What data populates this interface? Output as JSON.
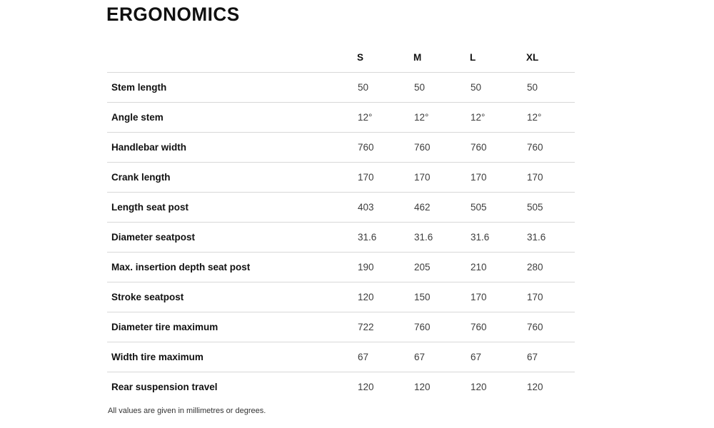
{
  "page": {
    "title": "ERGONOMICS",
    "footnote": "All values are given in millimetres or degrees."
  },
  "table": {
    "columns": [
      "S",
      "M",
      "L",
      "XL"
    ],
    "rows": [
      {
        "label": "Stem length",
        "values": [
          "50",
          "50",
          "50",
          "50"
        ]
      },
      {
        "label": "Angle stem",
        "values": [
          "12°",
          "12°",
          "12°",
          "12°"
        ]
      },
      {
        "label": "Handlebar width",
        "values": [
          "760",
          "760",
          "760",
          "760"
        ]
      },
      {
        "label": "Crank length",
        "values": [
          "170",
          "170",
          "170",
          "170"
        ]
      },
      {
        "label": "Length seat post",
        "values": [
          "403",
          "462",
          "505",
          "505"
        ]
      },
      {
        "label": "Diameter seatpost",
        "values": [
          "31.6",
          "31.6",
          "31.6",
          "31.6"
        ]
      },
      {
        "label": "Max. insertion depth seat post",
        "values": [
          "190",
          "205",
          "210",
          "280"
        ]
      },
      {
        "label": "Stroke seatpost",
        "values": [
          "120",
          "150",
          "170",
          "170"
        ]
      },
      {
        "label": "Diameter tire maximum",
        "values": [
          "722",
          "760",
          "760",
          "760"
        ]
      },
      {
        "label": "Width tire maximum",
        "values": [
          "67",
          "67",
          "67",
          "67"
        ]
      },
      {
        "label": "Rear suspension travel",
        "values": [
          "120",
          "120",
          "120",
          "120"
        ]
      }
    ]
  },
  "colors": {
    "background": "#ffffff",
    "text_primary": "#111111",
    "text_values": "#3d3d3d",
    "divider": "#d8d8d8",
    "footnote_text": "#333333"
  }
}
